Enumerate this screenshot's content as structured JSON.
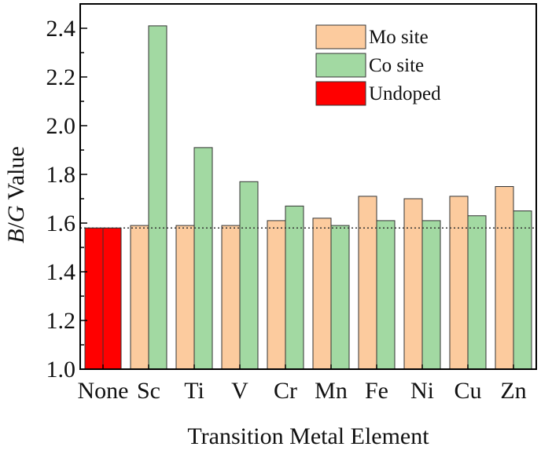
{
  "chart_data": {
    "type": "bar",
    "xlabel": "Transition Metal Element",
    "ylabel_italic_b": "B",
    "ylabel_slash": "/",
    "ylabel_italic_g": "G",
    "ylabel_rest": " Value",
    "categories": [
      "None",
      "Sc",
      "Ti",
      "V",
      "Cr",
      "Mn",
      "Fe",
      "Ni",
      "Cu",
      "Zn"
    ],
    "ylim": [
      1.0,
      2.5
    ],
    "y_ticks": [
      "1.0",
      "1.2",
      "1.4",
      "1.6",
      "1.8",
      "2.0",
      "2.2",
      "2.4"
    ],
    "reference_line": 1.58,
    "series": [
      {
        "name": "Mo site",
        "color": "#FCCB9E",
        "values": [
          null,
          1.59,
          1.59,
          1.59,
          1.61,
          1.62,
          1.71,
          1.7,
          1.71,
          1.75
        ]
      },
      {
        "name": "Co site",
        "color": "#A2D9A2",
        "values": [
          null,
          2.41,
          1.91,
          1.77,
          1.67,
          1.59,
          1.61,
          1.61,
          1.63,
          1.65
        ]
      },
      {
        "name": "Undoped",
        "color": "#FF0000",
        "values": [
          1.58,
          null,
          null,
          null,
          null,
          null,
          null,
          null,
          null,
          null
        ]
      }
    ],
    "legend_position": "top-right",
    "grid": false
  }
}
